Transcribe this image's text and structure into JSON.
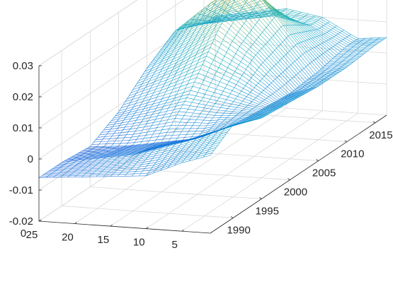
{
  "chart_data": {
    "type": "surface",
    "title": "",
    "xlabel": "",
    "ylabel": "",
    "zlabel": "",
    "x_ticks": [
      5,
      10,
      15,
      20,
      25
    ],
    "x_tick_labels": [
      "5",
      "10",
      "15",
      "20",
      "25"
    ],
    "x_range": [
      1,
      25
    ],
    "y_ticks": [
      1990,
      1995,
      2000,
      2005,
      2010,
      2015
    ],
    "y_tick_labels": [
      "1990",
      "1995",
      "2000",
      "2005",
      "2010",
      "2015"
    ],
    "y_range": [
      1986,
      2017
    ],
    "z_ticks": [
      -0.02,
      -0.01,
      0,
      0.01,
      0.02,
      0.03
    ],
    "z_tick_labels": [
      "-0.02",
      "-0.01",
      "0",
      "0.01",
      "0.02",
      "0.03"
    ],
    "z_range": [
      -0.02,
      0.03
    ],
    "x_axis_extra_label": "0",
    "grid": true,
    "colormap": "parula",
    "series": [
      {
        "x": 1,
        "points": [
          [
            1986,
            0.005
          ],
          [
            1990,
            0.01
          ],
          [
            1995,
            0.006
          ],
          [
            2000,
            0.005
          ],
          [
            2005,
            0.004
          ],
          [
            2010,
            0.004
          ],
          [
            2015,
            0.005
          ]
        ]
      },
      {
        "x": 5,
        "points": [
          [
            1986,
            0.002
          ],
          [
            1990,
            0.006
          ],
          [
            1995,
            0.003
          ],
          [
            2000,
            0.002
          ],
          [
            2005,
            0.001
          ],
          [
            2010,
            0.002
          ],
          [
            2015,
            0.004
          ]
        ]
      },
      {
        "x": 10,
        "points": [
          [
            1986,
            -0.003
          ],
          [
            1990,
            0.002
          ],
          [
            1995,
            -0.002
          ],
          [
            2000,
            0.004
          ],
          [
            2005,
            0.012
          ],
          [
            2010,
            0.016
          ],
          [
            2015,
            0.01
          ]
        ]
      },
      {
        "x": 15,
        "points": [
          [
            1986,
            -0.004
          ],
          [
            1990,
            -0.002
          ],
          [
            1995,
            -0.004
          ],
          [
            2000,
            0.006
          ],
          [
            2005,
            0.02
          ],
          [
            2010,
            0.03
          ],
          [
            2015,
            0.012
          ]
        ]
      },
      {
        "x": 20,
        "points": [
          [
            1986,
            -0.005
          ],
          [
            1990,
            -0.004
          ],
          [
            1995,
            -0.006
          ],
          [
            2000,
            0.002
          ],
          [
            2005,
            0.012
          ],
          [
            2010,
            0.022
          ],
          [
            2015,
            0.01
          ]
        ]
      },
      {
        "x": 25,
        "points": [
          [
            1986,
            -0.006
          ],
          [
            1990,
            -0.006
          ],
          [
            1995,
            -0.007
          ],
          [
            2000,
            -0.002
          ],
          [
            2005,
            0.006
          ],
          [
            2010,
            0.012
          ],
          [
            2015,
            0.008
          ]
        ]
      }
    ]
  }
}
